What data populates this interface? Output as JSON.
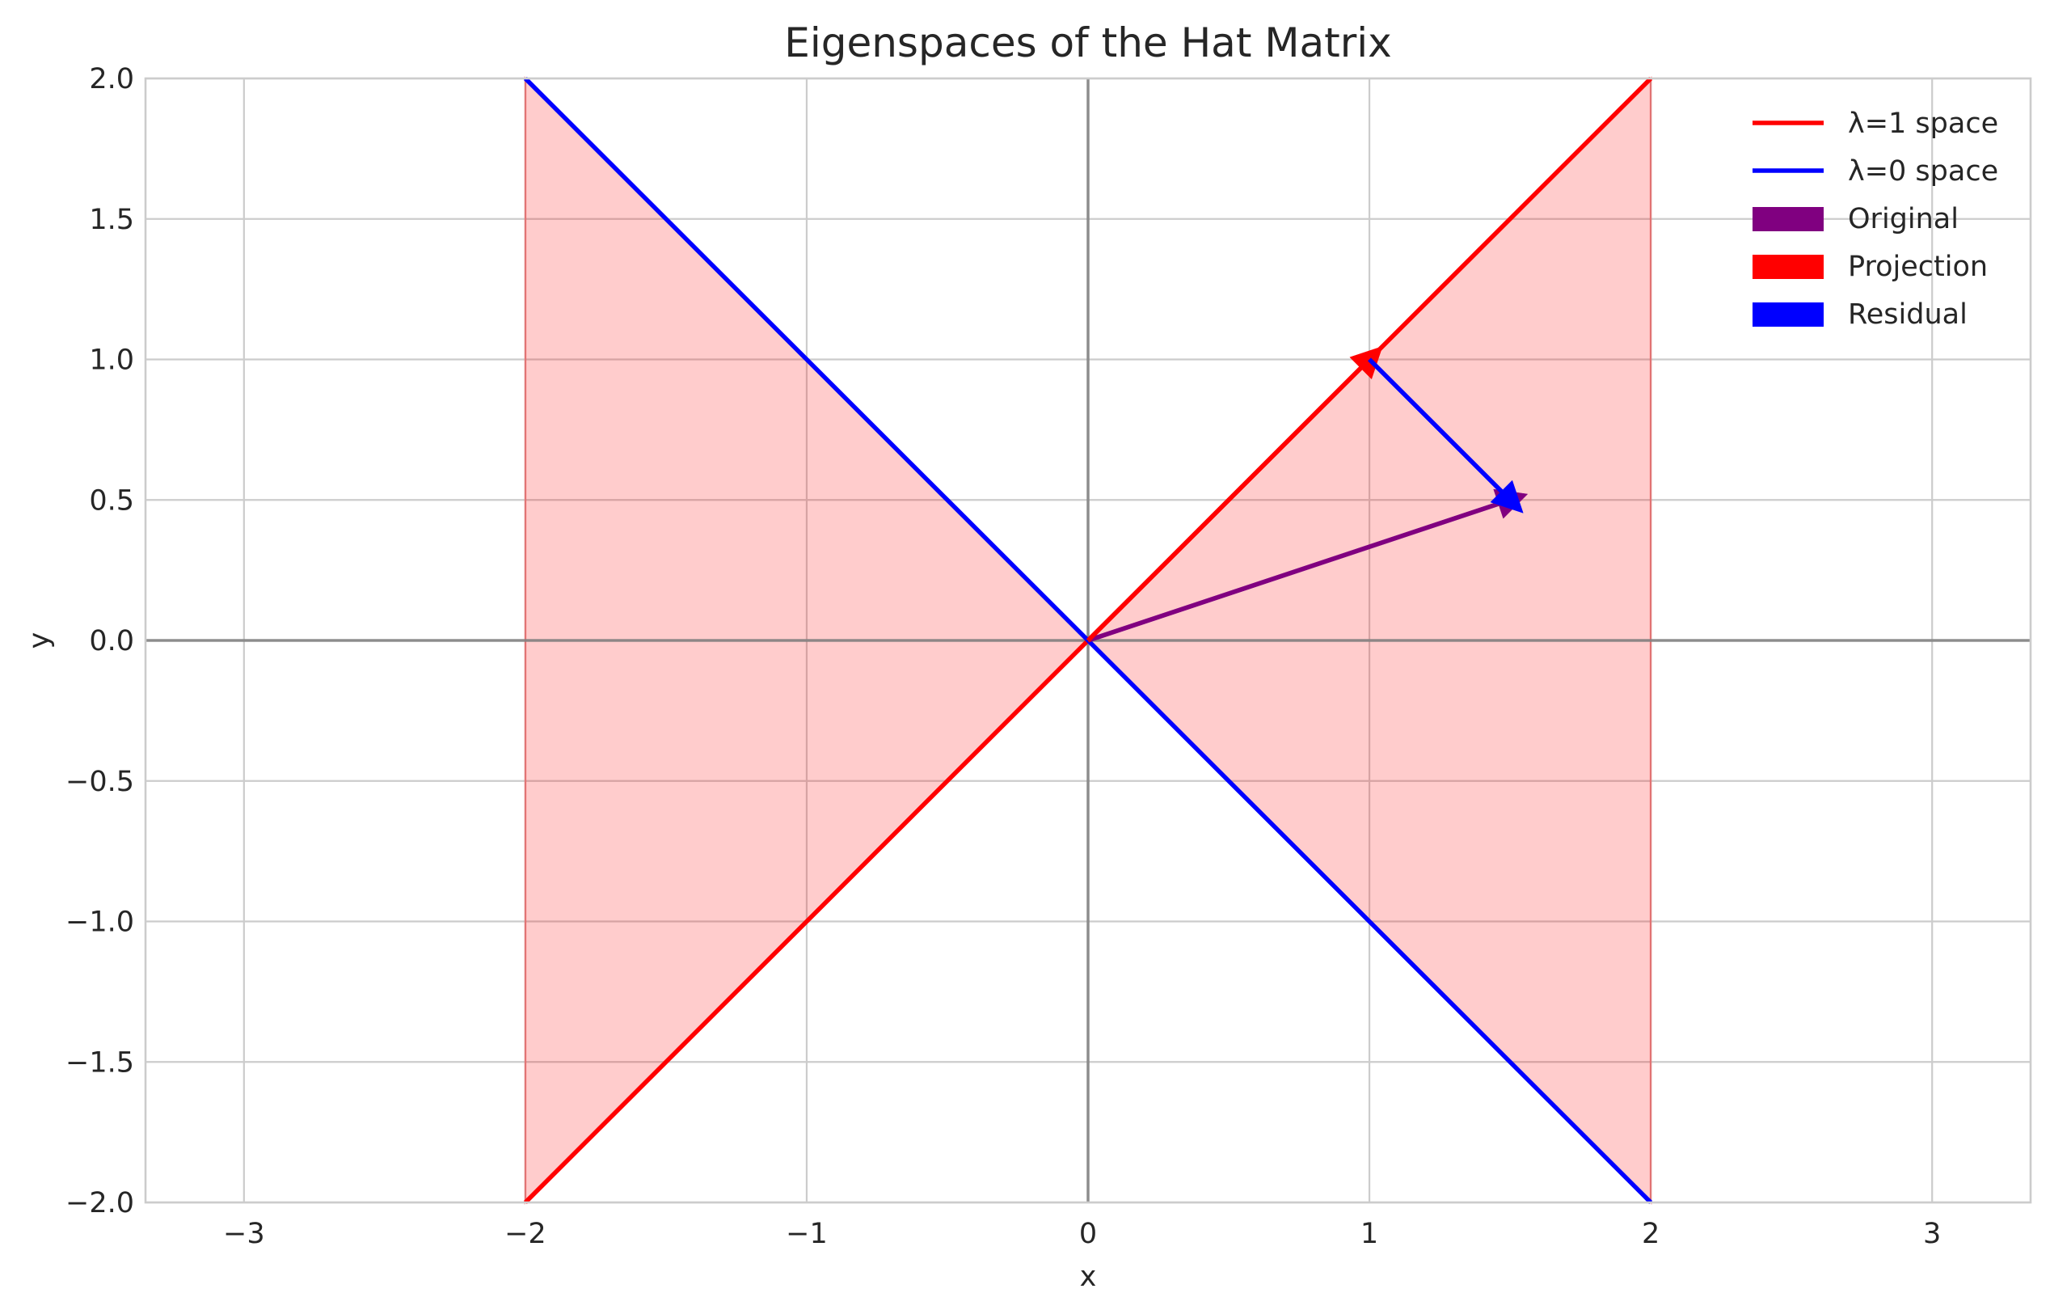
{
  "chart_data": {
    "type": "line",
    "title": "Eigenspaces of the Hat Matrix",
    "xlabel": "x",
    "ylabel": "y",
    "xlim": [
      -3.35,
      3.35
    ],
    "ylim": [
      -2.0,
      2.0
    ],
    "grid": true,
    "legend_position": "top-right",
    "x_ticks": [
      {
        "value": -3,
        "label": "−3"
      },
      {
        "value": -2,
        "label": "−2"
      },
      {
        "value": -1,
        "label": "−1"
      },
      {
        "value": 0,
        "label": "0"
      },
      {
        "value": 1,
        "label": "1"
      },
      {
        "value": 2,
        "label": "2"
      },
      {
        "value": 3,
        "label": "3"
      }
    ],
    "y_ticks": [
      {
        "value": -2.0,
        "label": "−2.0"
      },
      {
        "value": -1.5,
        "label": "−1.5"
      },
      {
        "value": -1.0,
        "label": "−1.0"
      },
      {
        "value": -0.5,
        "label": "−0.5"
      },
      {
        "value": 0.0,
        "label": "0.0"
      },
      {
        "value": 0.5,
        "label": "0.5"
      },
      {
        "value": 1.0,
        "label": "1.0"
      },
      {
        "value": 1.5,
        "label": "1.5"
      },
      {
        "value": 2.0,
        "label": "2.0"
      }
    ],
    "series": [
      {
        "name": "λ=1 space",
        "kind": "line",
        "color": "#ff0000",
        "x": [
          -2,
          2
        ],
        "y": [
          -2,
          2
        ]
      },
      {
        "name": "λ=0 space",
        "kind": "line",
        "color": "#0000ff",
        "x": [
          -2,
          2
        ],
        "y": [
          2,
          -2
        ]
      }
    ],
    "fill_regions": [
      {
        "color": "#ff0000",
        "opacity": 0.2,
        "x": [
          -2,
          2
        ],
        "y1": [
          -2,
          2
        ],
        "y2": [
          2,
          -2
        ]
      }
    ],
    "vectors": [
      {
        "name": "Original",
        "color": "#800080",
        "from": [
          0,
          0
        ],
        "to": [
          1.5,
          0.5
        ]
      },
      {
        "name": "Projection",
        "color": "#ff0000",
        "from": [
          0,
          0
        ],
        "to": [
          1.0,
          1.0
        ]
      },
      {
        "name": "Residual",
        "color": "#0000ff",
        "from": [
          1.0,
          1.0
        ],
        "to": [
          1.5,
          0.5
        ]
      }
    ],
    "reference_lines": [
      {
        "orientation": "horizontal",
        "value": 0,
        "color": "#808080"
      },
      {
        "orientation": "vertical",
        "value": 0,
        "color": "#808080"
      }
    ],
    "legend": [
      {
        "label": "λ=1 space",
        "symbol": "line",
        "color": "#ff0000"
      },
      {
        "label": "λ=0 space",
        "symbol": "line",
        "color": "#0000ff"
      },
      {
        "label": "Original",
        "symbol": "patch",
        "color": "#800080"
      },
      {
        "label": "Projection",
        "symbol": "patch",
        "color": "#ff0000"
      },
      {
        "label": "Residual",
        "symbol": "patch",
        "color": "#0000ff"
      }
    ]
  }
}
